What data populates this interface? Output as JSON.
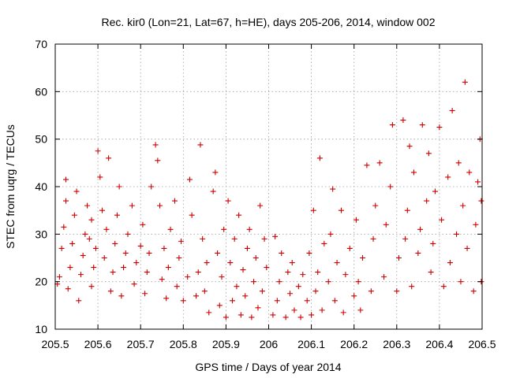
{
  "chart_data": {
    "type": "scatter",
    "title": "Rec. kir0 (Lon=21, Lat=67, h=HE), days 205-206, 2014, window 002",
    "xlabel": "GPS time / Days of year 2014",
    "ylabel": "STEC from uqrg / TECUs",
    "xlim": [
      205.5,
      206.5
    ],
    "ylim": [
      10,
      70
    ],
    "x_ticks": [
      205.5,
      205.6,
      205.7,
      205.8,
      205.9,
      206,
      206.1,
      206.2,
      206.3,
      206.4,
      206.5
    ],
    "x_tick_labels": [
      "205.5",
      "205.6",
      "205.7",
      "205.8",
      "205.9",
      "206",
      "206.1",
      "206.2",
      "206.3",
      "206.4",
      "206.5"
    ],
    "y_ticks": [
      10,
      20,
      30,
      40,
      50,
      60,
      70
    ],
    "y_tick_labels": [
      "10",
      "20",
      "30",
      "40",
      "50",
      "60",
      "70"
    ],
    "grid": true,
    "marker": "plus",
    "color": "#cc0000",
    "series": [
      {
        "name": "STEC",
        "points": [
          [
            205.505,
            19.5
          ],
          [
            205.51,
            21
          ],
          [
            205.515,
            27
          ],
          [
            205.52,
            31.5
          ],
          [
            205.525,
            37
          ],
          [
            205.525,
            41.5
          ],
          [
            205.53,
            18.5
          ],
          [
            205.535,
            23
          ],
          [
            205.54,
            28
          ],
          [
            205.545,
            34
          ],
          [
            205.55,
            39
          ],
          [
            205.555,
            16
          ],
          [
            205.56,
            21.5
          ],
          [
            205.565,
            25.5
          ],
          [
            205.57,
            30
          ],
          [
            205.575,
            36
          ],
          [
            205.58,
            29
          ],
          [
            205.585,
            19
          ],
          [
            205.585,
            33
          ],
          [
            205.59,
            23
          ],
          [
            205.595,
            27
          ],
          [
            205.6,
            47.5
          ],
          [
            205.605,
            42
          ],
          [
            205.61,
            35
          ],
          [
            205.615,
            25
          ],
          [
            205.62,
            31
          ],
          [
            205.625,
            46
          ],
          [
            205.63,
            18
          ],
          [
            205.635,
            22
          ],
          [
            205.64,
            28
          ],
          [
            205.645,
            34
          ],
          [
            205.65,
            40
          ],
          [
            205.655,
            17
          ],
          [
            205.66,
            23
          ],
          [
            205.665,
            26
          ],
          [
            205.67,
            30
          ],
          [
            205.68,
            36
          ],
          [
            205.685,
            19.5
          ],
          [
            205.69,
            24
          ],
          [
            205.7,
            27.5
          ],
          [
            205.705,
            32
          ],
          [
            205.71,
            17.5
          ],
          [
            205.715,
            22
          ],
          [
            205.72,
            26
          ],
          [
            205.725,
            40
          ],
          [
            205.735,
            48.8
          ],
          [
            205.74,
            45.5
          ],
          [
            205.745,
            36
          ],
          [
            205.75,
            20.5
          ],
          [
            205.755,
            27
          ],
          [
            205.76,
            16.5
          ],
          [
            205.765,
            23
          ],
          [
            205.77,
            31
          ],
          [
            205.78,
            37
          ],
          [
            205.785,
            19
          ],
          [
            205.79,
            25
          ],
          [
            205.795,
            28.5
          ],
          [
            205.8,
            16
          ],
          [
            205.81,
            21
          ],
          [
            205.815,
            41.5
          ],
          [
            205.82,
            34
          ],
          [
            205.83,
            17
          ],
          [
            205.835,
            22
          ],
          [
            205.84,
            48.8
          ],
          [
            205.845,
            29
          ],
          [
            205.85,
            18
          ],
          [
            205.855,
            24
          ],
          [
            205.86,
            13.5
          ],
          [
            205.87,
            39
          ],
          [
            205.875,
            43
          ],
          [
            205.88,
            26
          ],
          [
            205.885,
            15
          ],
          [
            205.89,
            21
          ],
          [
            205.895,
            31
          ],
          [
            205.9,
            12.5
          ],
          [
            205.905,
            37
          ],
          [
            205.91,
            24
          ],
          [
            205.915,
            16
          ],
          [
            205.92,
            29
          ],
          [
            205.925,
            19
          ],
          [
            205.93,
            34
          ],
          [
            205.935,
            13
          ],
          [
            205.94,
            22.5
          ],
          [
            205.945,
            17
          ],
          [
            205.95,
            27
          ],
          [
            205.955,
            31
          ],
          [
            205.96,
            12.5
          ],
          [
            205.965,
            20
          ],
          [
            205.97,
            25
          ],
          [
            205.975,
            14.5
          ],
          [
            205.98,
            36
          ],
          [
            205.985,
            18
          ],
          [
            205.99,
            29
          ],
          [
            205.995,
            23
          ],
          [
            206.01,
            13
          ],
          [
            206.015,
            29.5
          ],
          [
            206.02,
            16
          ],
          [
            206.025,
            20
          ],
          [
            206.03,
            26
          ],
          [
            206.04,
            12.5
          ],
          [
            206.045,
            22
          ],
          [
            206.05,
            17.5
          ],
          [
            206.055,
            24
          ],
          [
            206.06,
            14
          ],
          [
            206.07,
            19
          ],
          [
            206.075,
            12.5
          ],
          [
            206.08,
            21.5
          ],
          [
            206.09,
            16
          ],
          [
            206.095,
            26
          ],
          [
            206.1,
            13
          ],
          [
            206.105,
            35
          ],
          [
            206.11,
            18
          ],
          [
            206.115,
            22
          ],
          [
            206.12,
            46
          ],
          [
            206.125,
            14
          ],
          [
            206.13,
            28
          ],
          [
            206.14,
            20
          ],
          [
            206.145,
            30
          ],
          [
            206.15,
            39.5
          ],
          [
            206.155,
            16
          ],
          [
            206.16,
            24
          ],
          [
            206.17,
            35
          ],
          [
            206.175,
            13.5
          ],
          [
            206.18,
            21.5
          ],
          [
            206.19,
            27
          ],
          [
            206.2,
            17
          ],
          [
            206.205,
            33
          ],
          [
            206.21,
            20
          ],
          [
            206.215,
            14
          ],
          [
            206.22,
            25
          ],
          [
            206.23,
            44.5
          ],
          [
            206.24,
            18
          ],
          [
            206.245,
            29
          ],
          [
            206.25,
            36
          ],
          [
            206.26,
            45
          ],
          [
            206.27,
            21
          ],
          [
            206.275,
            32
          ],
          [
            206.285,
            40
          ],
          [
            206.29,
            53
          ],
          [
            206.3,
            18
          ],
          [
            206.305,
            25
          ],
          [
            206.315,
            54
          ],
          [
            206.32,
            29
          ],
          [
            206.325,
            35
          ],
          [
            206.33,
            48.5
          ],
          [
            206.335,
            19
          ],
          [
            206.34,
            43
          ],
          [
            206.35,
            26
          ],
          [
            206.355,
            31
          ],
          [
            206.36,
            53
          ],
          [
            206.37,
            37
          ],
          [
            206.375,
            47
          ],
          [
            206.38,
            22
          ],
          [
            206.385,
            28
          ],
          [
            206.39,
            39
          ],
          [
            206.4,
            52.5
          ],
          [
            206.405,
            33
          ],
          [
            206.41,
            19
          ],
          [
            206.42,
            42
          ],
          [
            206.425,
            24
          ],
          [
            206.43,
            56
          ],
          [
            206.44,
            30
          ],
          [
            206.445,
            45
          ],
          [
            206.45,
            20
          ],
          [
            206.455,
            36
          ],
          [
            206.46,
            62
          ],
          [
            206.465,
            27
          ],
          [
            206.47,
            43
          ],
          [
            206.48,
            18
          ],
          [
            206.485,
            32
          ],
          [
            206.49,
            41
          ],
          [
            206.495,
            50
          ],
          [
            206.498,
            20
          ],
          [
            206.498,
            37
          ]
        ]
      }
    ]
  }
}
